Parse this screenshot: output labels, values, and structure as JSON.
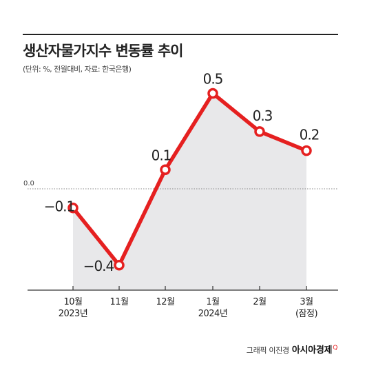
{
  "header": {
    "title": "생산자물가지수 변동률 추이",
    "subtitle": "(단위: %, 전월대비, 자료: 한국은행)"
  },
  "colors": {
    "line": "#e52020",
    "area": "#e8e8ea",
    "marker_fill": "#ffffff",
    "axis": "#333333",
    "zero_line": "#888888"
  },
  "chart_data": {
    "type": "line",
    "categories": [
      "10월 2023년",
      "11월",
      "12월",
      "1월 2024년",
      "2월",
      "3월 (잠정)"
    ],
    "tick_labels": [
      [
        "10월",
        "2023년"
      ],
      [
        "11월"
      ],
      [
        "12월"
      ],
      [
        "1월",
        "2024년"
      ],
      [
        "2월"
      ],
      [
        "3월",
        "(잠정)"
      ]
    ],
    "values": [
      -0.1,
      -0.4,
      0.1,
      0.5,
      0.3,
      0.2
    ],
    "data_labels": [
      "−0.1",
      "−0.4",
      "0.1",
      "0.5",
      "0.3",
      "0.2"
    ],
    "zero_label": "0.0",
    "area_fill": true,
    "legend": "none"
  },
  "credit": {
    "text": "그래픽 이진경",
    "brand": "아시아경제",
    "mark": "Q"
  }
}
